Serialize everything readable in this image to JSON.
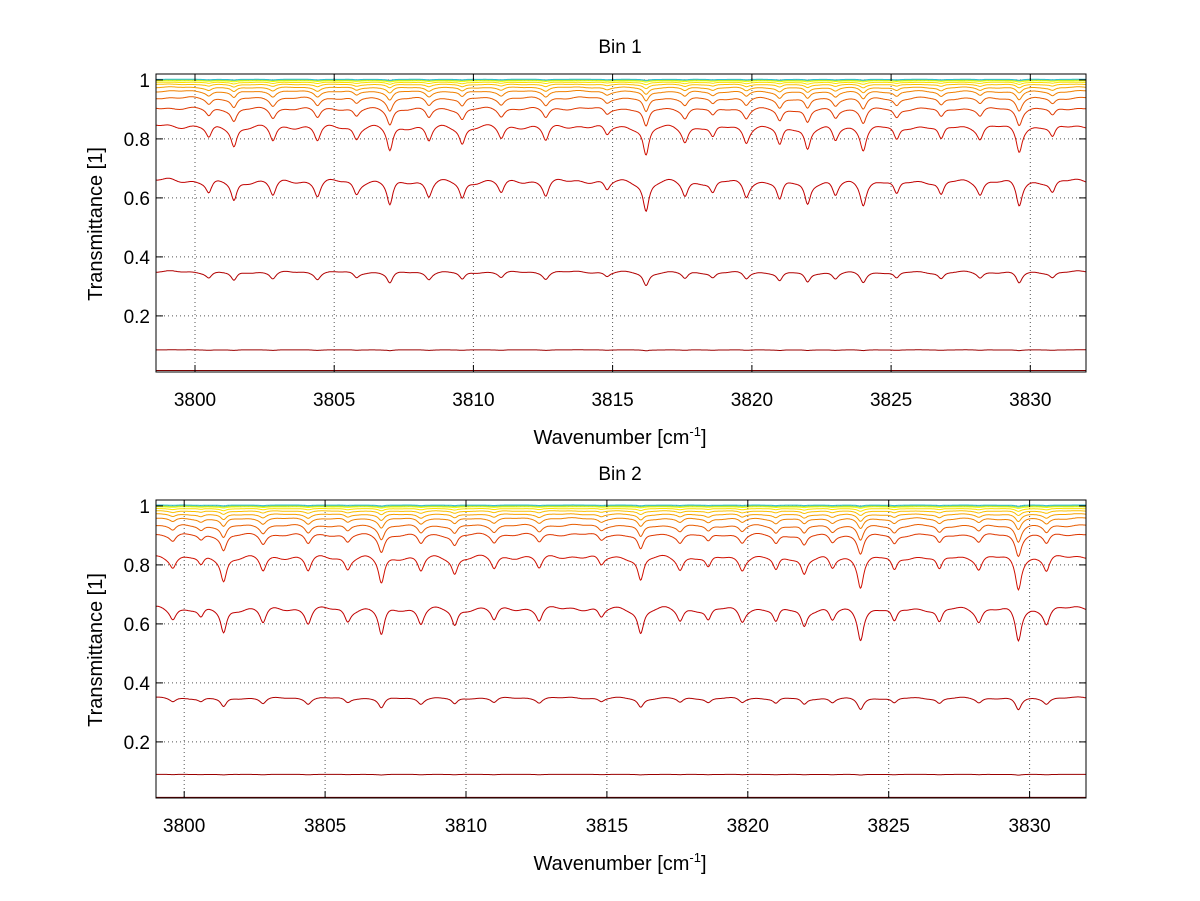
{
  "chart_data": [
    {
      "type": "line",
      "title": "Bin 1",
      "xlabel": "Wavenumber [cm",
      "xlabel_sup": "-1",
      "xlabel_end": "]",
      "ylabel": "Transmittance [1]",
      "xlim": [
        3798.6,
        3832.0
      ],
      "ylim": [
        0.01,
        1.02
      ],
      "xticks": [
        3800,
        3805,
        3810,
        3815,
        3820,
        3825,
        3830
      ],
      "xtick_labels": [
        "3800",
        "3805",
        "3810",
        "3815",
        "3820",
        "3825",
        "3830"
      ],
      "yticks": [
        0.2,
        0.4,
        0.6,
        0.8,
        1
      ],
      "ytick_labels": [
        "0.2",
        "0.4",
        "0.6",
        "0.8",
        "1"
      ],
      "grid": "dotted",
      "lines": [
        3800.5,
        3801.4,
        3802.8,
        3804.4,
        3805.8,
        3807.0,
        3808.4,
        3809.6,
        3811.0,
        3812.6,
        3814.8,
        3816.2,
        3817.6,
        3818.6,
        3819.8,
        3821.0,
        3822.0,
        3823.0,
        3824.0,
        3825.2,
        3826.8,
        3828.2,
        3829.6,
        3830.8
      ],
      "line_depths": [
        0.5,
        0.8,
        0.6,
        0.6,
        0.5,
        1.0,
        0.6,
        0.7,
        0.5,
        0.6,
        0.4,
        1.2,
        0.6,
        0.5,
        0.6,
        0.8,
        0.9,
        0.6,
        0.9,
        0.6,
        0.6,
        0.5,
        1.0,
        0.5
      ],
      "series": [
        {
          "baseline": 0.015,
          "depth": 0.005,
          "color": "#7a0000"
        },
        {
          "baseline": 0.085,
          "depth": 0.03,
          "color": "#9b0000"
        },
        {
          "baseline": 0.35,
          "depth": 0.11,
          "color": "#b00000"
        },
        {
          "baseline": 0.66,
          "depth": 0.13,
          "color": "#c00000"
        },
        {
          "baseline": 0.845,
          "depth": 0.1,
          "color": "#d01000"
        },
        {
          "baseline": 0.905,
          "depth": 0.06,
          "color": "#de3800"
        },
        {
          "baseline": 0.94,
          "depth": 0.045,
          "color": "#e85c00"
        },
        {
          "baseline": 0.962,
          "depth": 0.03,
          "color": "#f08000"
        },
        {
          "baseline": 0.975,
          "depth": 0.02,
          "color": "#f6a000"
        },
        {
          "baseline": 0.985,
          "depth": 0.012,
          "color": "#fac000"
        },
        {
          "baseline": 0.992,
          "depth": 0.007,
          "color": "#fce000"
        },
        {
          "baseline": 0.997,
          "depth": 0.004,
          "color": "#f0ff00"
        },
        {
          "baseline": 1.0,
          "depth": 0.003,
          "color": "#9ad84a"
        },
        {
          "baseline": 1.002,
          "depth": 0.003,
          "color": "#30c0d0"
        }
      ]
    },
    {
      "type": "line",
      "title": "Bin 2",
      "xlabel": "Wavenumber [cm",
      "xlabel_sup": "-1",
      "xlabel_end": "]",
      "ylabel": "Transmittance [1]",
      "xlim": [
        3799.0,
        3832.0
      ],
      "ylim": [
        0.01,
        1.02
      ],
      "xticks": [
        3800,
        3805,
        3810,
        3815,
        3820,
        3825,
        3830
      ],
      "xtick_labels": [
        "3800",
        "3805",
        "3810",
        "3815",
        "3820",
        "3825",
        "3830"
      ],
      "yticks": [
        0.2,
        0.4,
        0.6,
        0.8,
        1
      ],
      "ytick_labels": [
        "0.2",
        "0.4",
        "0.6",
        "0.8",
        "1"
      ],
      "grid": "dotted",
      "lines": [
        3799.6,
        3800.6,
        3801.4,
        3802.8,
        3804.4,
        3805.8,
        3807.0,
        3808.4,
        3809.6,
        3811.0,
        3812.6,
        3814.8,
        3816.2,
        3817.6,
        3818.6,
        3819.8,
        3821.0,
        3822.0,
        3823.0,
        3824.0,
        3825.2,
        3826.8,
        3828.2,
        3829.6,
        3830.6
      ],
      "line_depths": [
        0.4,
        0.4,
        1.0,
        0.6,
        0.6,
        0.5,
        1.1,
        0.6,
        0.7,
        0.5,
        0.5,
        0.4,
        1.0,
        0.5,
        0.5,
        0.5,
        0.6,
        0.7,
        0.5,
        1.2,
        0.6,
        0.6,
        0.5,
        1.3,
        0.6
      ],
      "series": [
        {
          "baseline": 0.012,
          "depth": 0.004,
          "color": "#7a0000"
        },
        {
          "baseline": 0.09,
          "depth": 0.02,
          "color": "#9b0000"
        },
        {
          "baseline": 0.35,
          "depth": 0.09,
          "color": "#b00000"
        },
        {
          "baseline": 0.655,
          "depth": 0.13,
          "color": "#c00000"
        },
        {
          "baseline": 0.83,
          "depth": 0.1,
          "color": "#d01000"
        },
        {
          "baseline": 0.905,
          "depth": 0.06,
          "color": "#de3800"
        },
        {
          "baseline": 0.935,
          "depth": 0.045,
          "color": "#e85c00"
        },
        {
          "baseline": 0.958,
          "depth": 0.03,
          "color": "#f08000"
        },
        {
          "baseline": 0.972,
          "depth": 0.02,
          "color": "#f6a000"
        },
        {
          "baseline": 0.983,
          "depth": 0.012,
          "color": "#fac000"
        },
        {
          "baseline": 0.991,
          "depth": 0.007,
          "color": "#fce000"
        },
        {
          "baseline": 0.997,
          "depth": 0.004,
          "color": "#f0ff00"
        },
        {
          "baseline": 1.0,
          "depth": 0.003,
          "color": "#9ad84a"
        },
        {
          "baseline": 1.003,
          "depth": 0.003,
          "color": "#30c0d0"
        }
      ]
    }
  ]
}
